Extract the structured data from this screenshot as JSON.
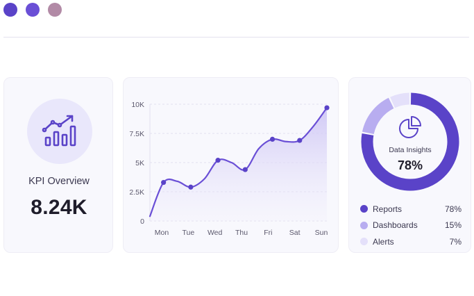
{
  "window_dots": [
    {
      "name": "window-dot-1",
      "color": "#5a43c8"
    },
    {
      "name": "window-dot-2",
      "color": "#6a4fd6"
    },
    {
      "name": "window-dot-3",
      "color": "#b28aa6"
    }
  ],
  "kpi": {
    "icon": "trend-bar-chart-icon",
    "label": "KPI Overview",
    "value": "8.24K"
  },
  "chart_data": [
    {
      "type": "area",
      "categories": [
        "Mon",
        "Tue",
        "Wed",
        "Thu",
        "Fri",
        "Sat",
        "Sun"
      ],
      "y_ticks": [
        "0",
        "2.5K",
        "5K",
        "7.5K",
        "10K"
      ],
      "ylim": [
        0,
        10000
      ],
      "grid": true,
      "x": [
        0,
        1,
        2,
        3,
        4,
        5,
        6,
        7,
        8,
        9,
        10,
        11,
        12,
        13
      ],
      "y": [
        400,
        3300,
        3400,
        2900,
        3600,
        5200,
        5000,
        4400,
        6200,
        7000,
        6800,
        6900,
        8100,
        9700
      ],
      "markers": [
        1,
        3,
        5,
        7,
        9,
        11,
        13
      ],
      "line_color": "#6a4fd6"
    },
    {
      "type": "pie",
      "title": "Data Insights",
      "center_value": "78%",
      "labels": [
        "Reports",
        "Dashboards",
        "Alerts"
      ],
      "values": [
        78,
        15,
        7
      ],
      "value_labels": [
        "78%",
        "15%",
        "7%"
      ],
      "colors": [
        "#5a43c8",
        "#b8adf0",
        "#e4e0fa"
      ]
    }
  ]
}
